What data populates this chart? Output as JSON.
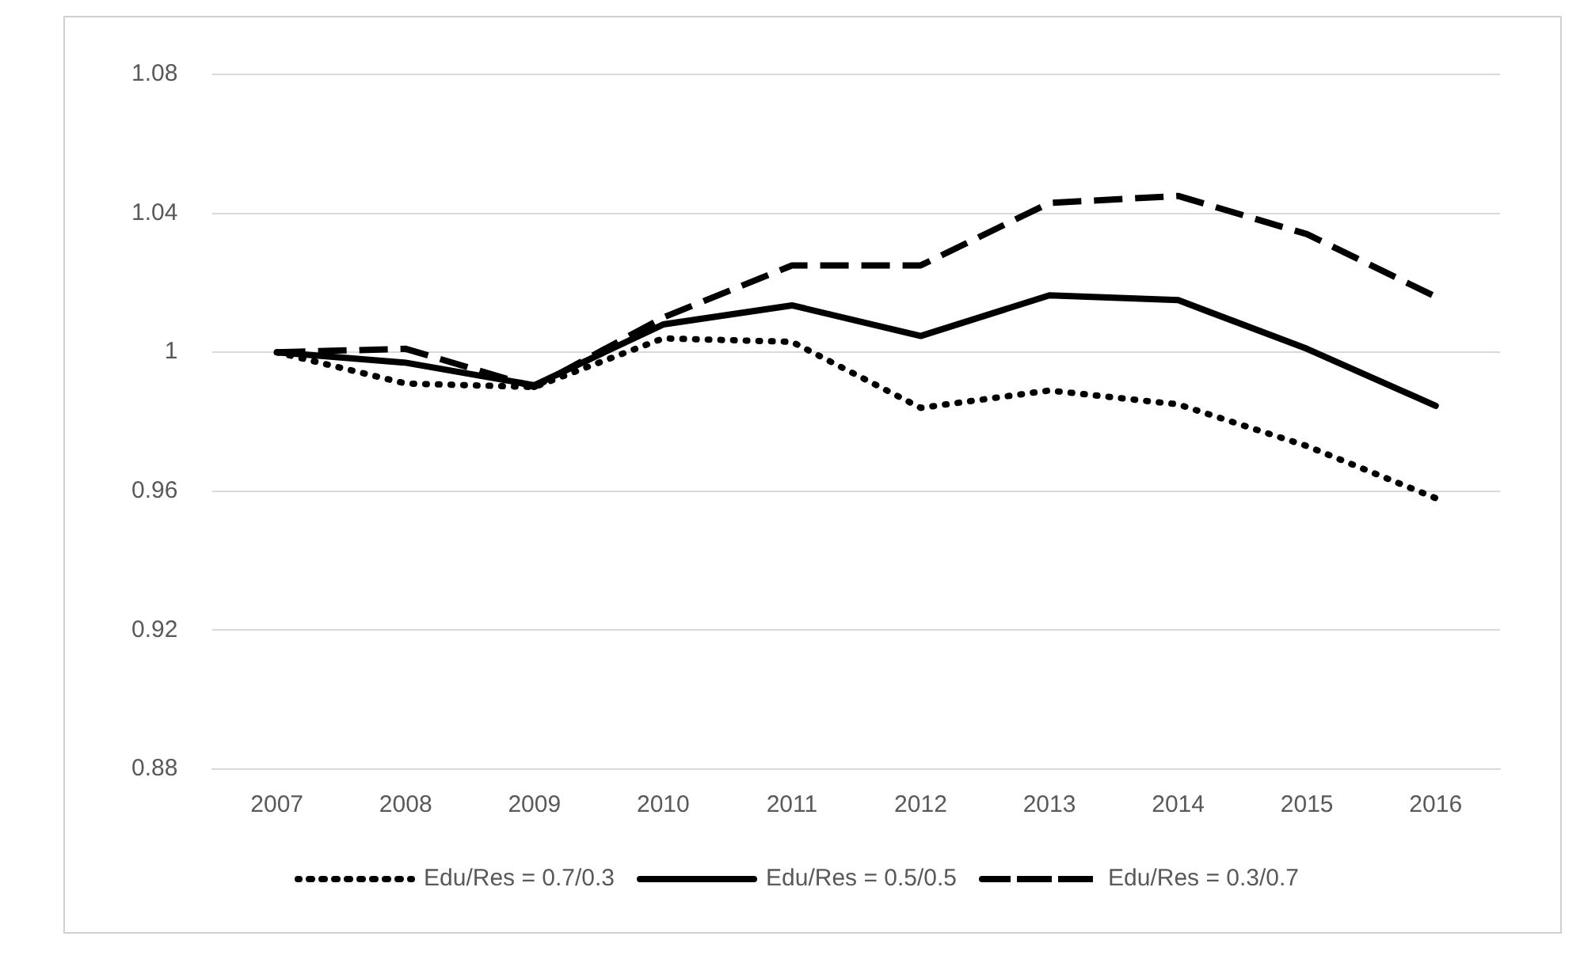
{
  "chart_data": {
    "type": "line",
    "categories": [
      "2007",
      "2008",
      "2009",
      "2010",
      "2011",
      "2012",
      "2013",
      "2014",
      "2015",
      "2016"
    ],
    "series": [
      {
        "name": "Edu/Res = 0.7/0.3",
        "color": "#000000",
        "line_style": "dotted",
        "values": [
          1.0,
          0.991,
          0.99,
          1.004,
          1.003,
          0.984,
          0.989,
          0.985,
          0.973,
          0.958
        ]
      },
      {
        "name": "Edu/Res = 0.5/0.5",
        "color": "#000000",
        "line_style": "solid",
        "values": [
          1.0,
          0.997,
          0.9905,
          1.008,
          1.0135,
          1.0047,
          1.0164,
          1.015,
          1.001,
          0.9846
        ]
      },
      {
        "name": "Edu/Res = 0.3/0.7",
        "color": "#000000",
        "line_style": "dashed",
        "values": [
          1.0,
          1.001,
          0.99,
          1.01,
          1.025,
          1.025,
          1.043,
          1.045,
          1.034,
          1.016
        ]
      }
    ],
    "ylim": [
      0.88,
      1.08
    ],
    "yticks": [
      0.88,
      0.92,
      0.96,
      1,
      1.04,
      1.08
    ],
    "grid": "y",
    "legend": "bottom",
    "marker": "none"
  }
}
